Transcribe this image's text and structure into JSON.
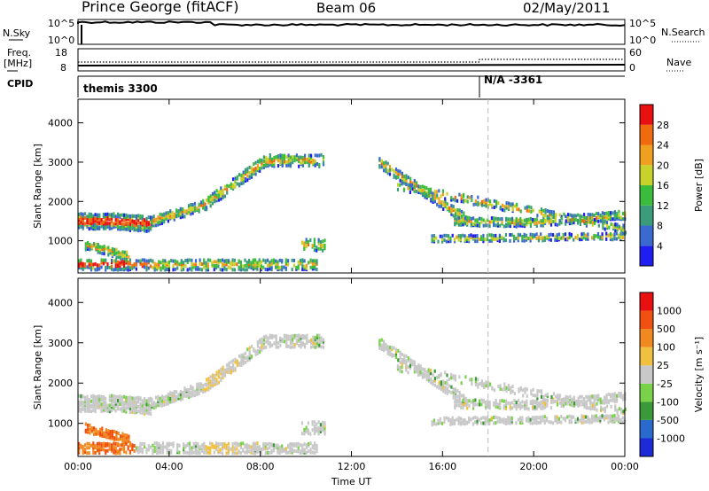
{
  "header": {
    "station": "Prince George (fitACF)",
    "beam": "Beam 06",
    "date": "02/May/2011"
  },
  "top_panels": {
    "nsky_label": "N.Sky",
    "nsky_ticks": [
      "10^5",
      "10^0"
    ],
    "nsearch_label": "N.Search",
    "nsearch_ticks": [
      "10^5",
      "10^0"
    ],
    "freq_label": "Freq.",
    "freq_unit": "[MHz]",
    "freq_ticks": [
      "18",
      "8"
    ],
    "nave_label": "Nave",
    "nave_ticks": [
      "60",
      "0"
    ],
    "cpid_label": "CPID",
    "cpid_segments": [
      "themis 3300",
      "N/A -3361"
    ]
  },
  "chart_data": [
    {
      "type": "heatmap",
      "name": "power",
      "ylabel": "Slant Range [km]",
      "xlabel": "",
      "xticks": [
        "00:00",
        "04:00",
        "08:00",
        "12:00",
        "16:00",
        "20:00",
        "00:00"
      ],
      "yticks": [
        1000,
        2000,
        3000,
        4000
      ],
      "ylim": [
        180,
        4600
      ],
      "xlim_hours": [
        0,
        24
      ],
      "colorbar": {
        "label": "Power [dB]",
        "ticks": [
          "4",
          "8",
          "12",
          "16",
          "20",
          "24",
          "28"
        ],
        "colors": [
          "#1e1ef0",
          "#3a6ad0",
          "#3a9c7a",
          "#3cbc3c",
          "#c8d22a",
          "#f0a020",
          "#f06a10",
          "#e81010"
        ]
      }
    },
    {
      "type": "heatmap",
      "name": "velocity",
      "ylabel": "Slant Range [km]",
      "xlabel": "Time UT",
      "xticks": [
        "00:00",
        "04:00",
        "08:00",
        "12:00",
        "16:00",
        "20:00",
        "00:00"
      ],
      "yticks": [
        1000,
        2000,
        3000,
        4000
      ],
      "ylim": [
        180,
        4600
      ],
      "xlim_hours": [
        0,
        24
      ],
      "colorbar": {
        "label": "Velocity [m s⁻¹]",
        "ticks": [
          "1000",
          "500",
          "100",
          "25",
          "-25",
          "-100",
          "-500",
          "-1000"
        ],
        "colors": [
          "#1e2ad8",
          "#2a6acc",
          "#3a9a3a",
          "#7ad24a",
          "#c8c8c8",
          "#f0c040",
          "#f08a20",
          "#f05010",
          "#e81010"
        ]
      }
    }
  ]
}
